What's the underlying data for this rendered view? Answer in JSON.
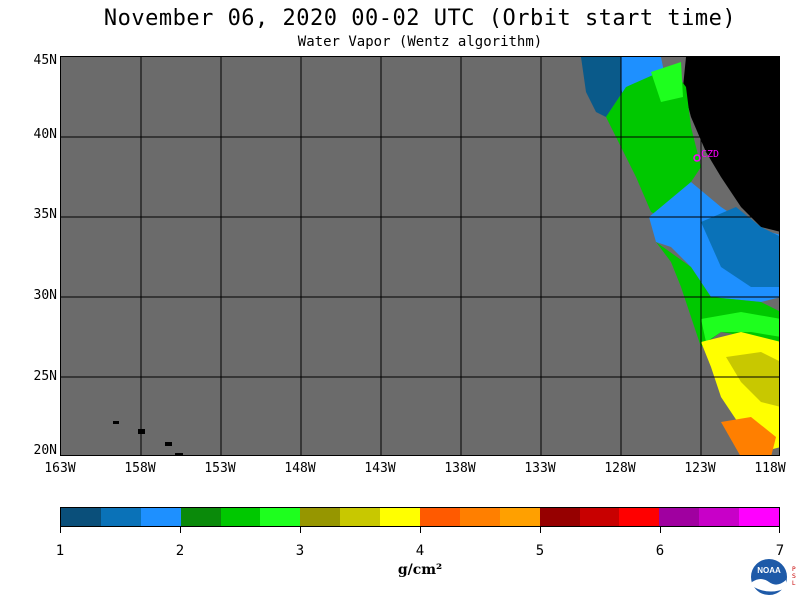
{
  "title": "November 06, 2020  00-02 UTC  (Orbit start time)",
  "subtitle": "Water Vapor (Wentz algorithm)",
  "map": {
    "lat_labels": [
      "45N",
      "40N",
      "35N",
      "30N",
      "25N",
      "20N"
    ],
    "lon_labels": [
      "163W",
      "158W",
      "153W",
      "148W",
      "143W",
      "138W",
      "133W",
      "128W",
      "123W",
      "118W"
    ],
    "station_label": "CZD"
  },
  "colorbar": {
    "labels": [
      "1",
      "2",
      "3",
      "4",
      "5",
      "6",
      "7"
    ],
    "colors": [
      "#0a4f7a",
      "#0a72b8",
      "#1e90ff",
      "#0a8a0a",
      "#00c800",
      "#1eff1e",
      "#969600",
      "#c8c800",
      "#ffff00",
      "#ff5a00",
      "#ff7f00",
      "#ffa000",
      "#960000",
      "#c80000",
      "#ff0000",
      "#a000a0",
      "#c800c8",
      "#ff00ff"
    ],
    "units": "g/cm²"
  },
  "logo": {
    "text": "NOAA",
    "side_letters": [
      "P",
      "S",
      "L"
    ]
  }
}
